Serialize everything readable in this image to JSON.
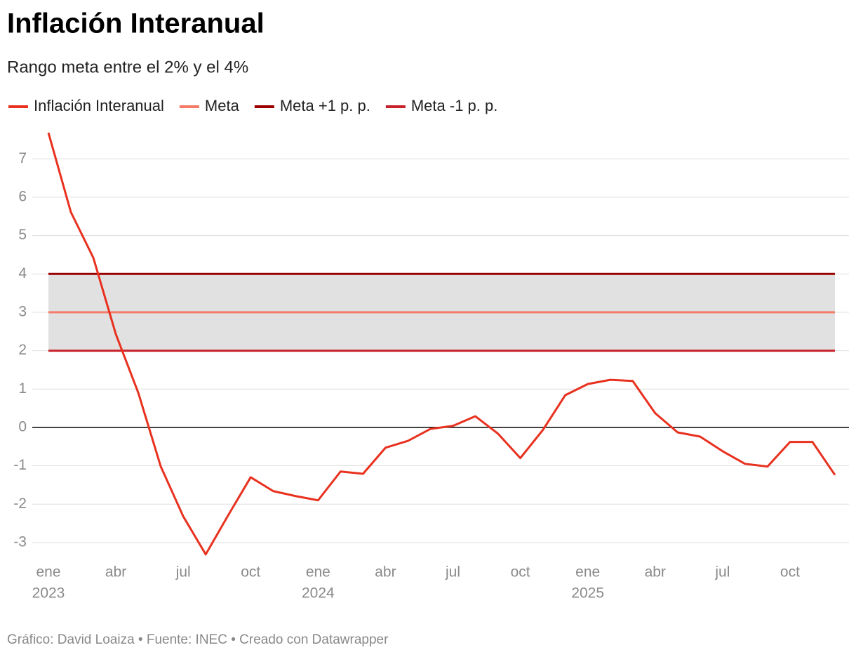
{
  "chart_data": {
    "type": "line",
    "title": "Inflación Interanual",
    "subtitle": "Rango meta entre el 2% y el 4%",
    "footer": "Gráfico: David Loaiza • Fuente: INEC • Creado con Datawrapper",
    "categories": [
      "ene",
      null,
      null,
      "abr",
      null,
      null,
      "jul",
      null,
      null,
      "oct",
      null,
      null,
      "ene",
      null,
      null,
      "abr",
      null,
      null,
      "jul",
      null,
      null,
      "oct",
      null,
      null,
      "ene",
      null,
      null,
      "abr",
      null,
      null,
      "jul",
      null,
      null,
      "oct",
      null,
      null
    ],
    "years": [
      "2023",
      "2024",
      "2025"
    ],
    "ylim": [
      -3.35,
      7.7
    ],
    "yticks": [
      -3,
      -2,
      -1,
      0,
      1,
      2,
      3,
      4,
      5,
      6,
      7
    ],
    "grid": true,
    "band": {
      "color": "#e1e1e1"
    },
    "series": [
      {
        "name": "Inflación Interanual",
        "color": "#e8311f",
        "values": [
          7.68,
          5.61,
          4.42,
          2.43,
          0.9,
          -1.02,
          -2.32,
          -3.31,
          -2.29,
          -1.3,
          -1.66,
          -1.79,
          -1.9,
          -1.15,
          -1.21,
          -0.53,
          -0.35,
          -0.04,
          0.04,
          0.29,
          -0.16,
          -0.8,
          -0.07,
          0.84,
          1.13,
          1.24,
          1.21,
          0.37,
          -0.13,
          -0.24,
          -0.62,
          -0.95,
          -1.02,
          -0.38,
          -0.38,
          -1.24
        ]
      },
      {
        "name": "Meta",
        "color": "#f47b67",
        "values": [
          3,
          3,
          3,
          3,
          3,
          3,
          3,
          3,
          3,
          3,
          3,
          3,
          3,
          3,
          3,
          3,
          3,
          3,
          3,
          3,
          3,
          3,
          3,
          3,
          3,
          3,
          3,
          3,
          3,
          3,
          3,
          3,
          3,
          3,
          3,
          3
        ]
      },
      {
        "name": "Meta +1 p. p.",
        "color": "#9b0000",
        "values": [
          4,
          4,
          4,
          4,
          4,
          4,
          4,
          4,
          4,
          4,
          4,
          4,
          4,
          4,
          4,
          4,
          4,
          4,
          4,
          4,
          4,
          4,
          4,
          4,
          4,
          4,
          4,
          4,
          4,
          4,
          4,
          4,
          4,
          4,
          4,
          4
        ]
      },
      {
        "name": "Meta -1 p. p.",
        "color": "#c8222a",
        "values": [
          2,
          2,
          2,
          2,
          2,
          2,
          2,
          2,
          2,
          2,
          2,
          2,
          2,
          2,
          2,
          2,
          2,
          2,
          2,
          2,
          2,
          2,
          2,
          2,
          2,
          2,
          2,
          2,
          2,
          2,
          2,
          2,
          2,
          2,
          2,
          2
        ]
      }
    ]
  }
}
